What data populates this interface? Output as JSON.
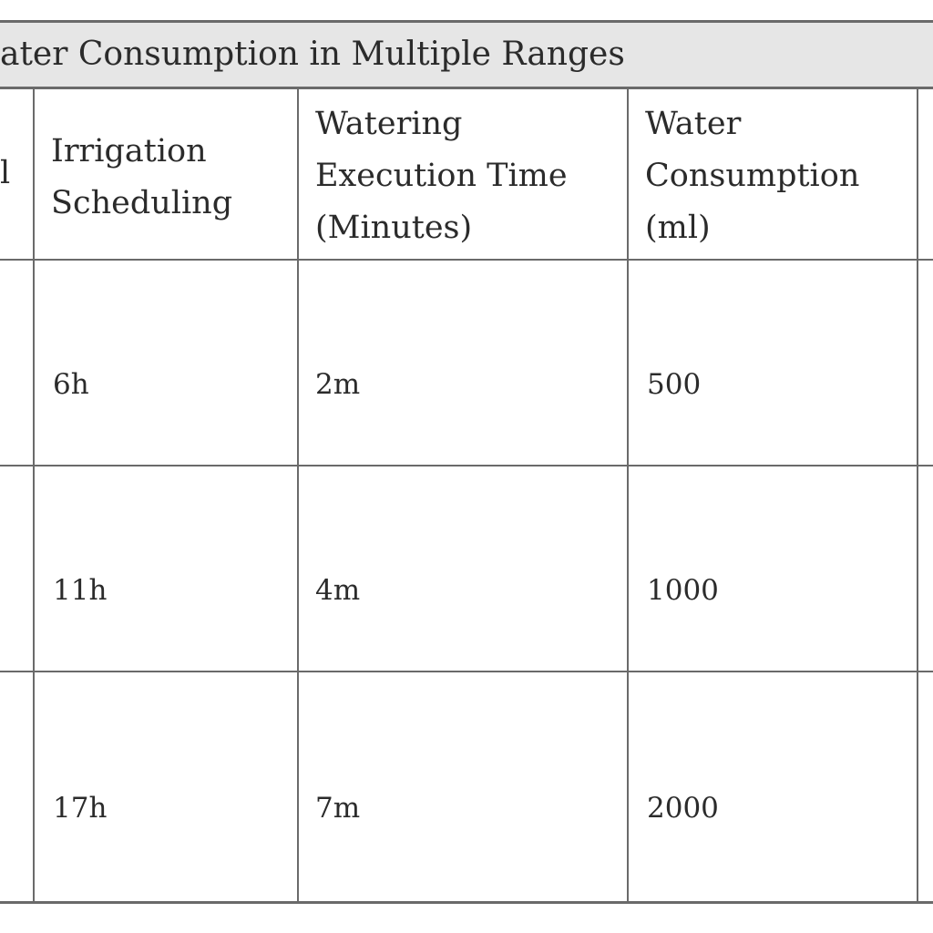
{
  "table": {
    "title": "ater Consumption in Multiple Ranges",
    "partial_first_header": "l",
    "headers": {
      "scheduling": [
        "Irrigation",
        "Scheduling"
      ],
      "execution_time": [
        "Watering",
        "Execution Time",
        "(Minutes)"
      ],
      "consumption": [
        "Water",
        "Consumption",
        "(ml)"
      ]
    },
    "rows": [
      {
        "scheduling": "6h",
        "execution_time": "2m",
        "consumption": "500"
      },
      {
        "scheduling": "11h",
        "execution_time": "4m",
        "consumption": "1000"
      },
      {
        "scheduling": "17h",
        "execution_time": "7m",
        "consumption": "2000"
      }
    ]
  },
  "colors": {
    "title_background": "#e6e6e6",
    "rule": "#6a6a6a",
    "text": "#2b2b2b"
  }
}
